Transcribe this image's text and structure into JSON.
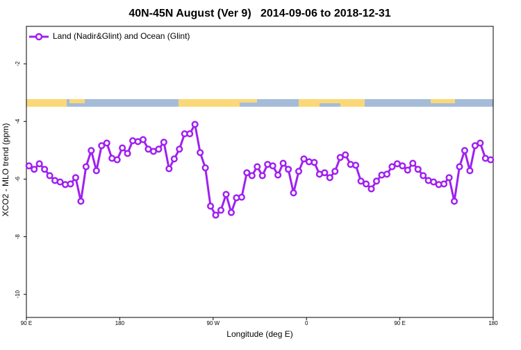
{
  "chart_data": {
    "type": "line",
    "title": "40N-45N August (Ver 9)   2014-09-06 to 2018-12-31",
    "xlabel": "Longitude (deg E)",
    "ylabel": "XCO2 - MLO trend (ppm)",
    "legend_position": "top-left",
    "x": [
      92.5,
      97.5,
      102.5,
      107.5,
      112.5,
      117.5,
      122.5,
      127.5,
      132.5,
      137.5,
      142.5,
      147.5,
      152.5,
      157.5,
      162.5,
      167.5,
      172.5,
      177.5,
      182.5,
      187.5,
      192.5,
      197.5,
      202.5,
      207.5,
      212.5,
      217.5,
      222.5,
      227.5,
      232.5,
      237.5,
      242.5,
      247.5,
      252.5,
      257.5,
      262.5,
      267.5,
      272.5,
      277.5,
      282.5,
      287.5,
      292.5,
      297.5,
      302.5,
      307.5,
      312.5,
      317.5,
      322.5,
      327.5,
      332.5,
      337.5,
      342.5,
      347.5,
      352.5,
      357.5,
      362.5,
      367.5,
      372.5,
      377.5,
      382.5,
      387.5,
      392.5,
      397.5,
      402.5,
      407.5,
      412.5,
      417.5,
      422.5,
      427.5,
      432.5,
      437.5,
      442.5,
      447.5,
      452.5,
      457.5,
      462.5,
      467.5,
      472.5,
      477.5,
      482.5,
      487.5,
      492.5,
      497.5,
      502.5,
      507.5,
      512.5,
      517.5,
      522.5,
      527.5,
      532.5,
      537.5
    ],
    "series": [
      {
        "name": "Land (Nadir&Glint) and Ocean (Glint)",
        "color": "#a020f0",
        "values": [
          -5.54,
          -5.66,
          -5.47,
          -5.66,
          -5.88,
          -6.05,
          -6.1,
          -6.19,
          -6.17,
          -5.95,
          -6.77,
          -5.57,
          -5.01,
          -5.71,
          -4.84,
          -4.75,
          -5.28,
          -5.33,
          -4.92,
          -5.11,
          -4.67,
          -4.7,
          -4.63,
          -4.96,
          -5.04,
          -4.96,
          -4.72,
          -5.64,
          -5.3,
          -4.96,
          -4.43,
          -4.43,
          -4.1,
          -5.08,
          -5.61,
          -6.94,
          -7.25,
          -7.08,
          -6.53,
          -7.16,
          -6.65,
          -6.63,
          -5.78,
          -5.88,
          -5.57,
          -5.88,
          -5.49,
          -5.54,
          -5.86,
          -5.45,
          -5.66,
          -6.48,
          -5.73,
          -5.3,
          -5.4,
          -5.42,
          -5.83,
          -5.78,
          -5.95,
          -5.73,
          -5.25,
          -5.16,
          -5.49,
          -5.52,
          -6.07,
          -6.17,
          -6.34,
          -6.07,
          -5.86,
          -5.83,
          -5.57,
          -5.47,
          -5.54,
          -5.69,
          -5.45,
          -5.66,
          -5.88,
          -6.05,
          -6.1,
          -6.19,
          -6.17,
          -5.95,
          -6.77,
          -5.57,
          -5.01,
          -5.71,
          -4.84,
          -4.75,
          -5.28,
          -5.33
        ]
      }
    ],
    "xlim": [
      90,
      540
    ],
    "xticks": [
      {
        "value": 90,
        "label": "90 E"
      },
      180,
      {
        "value": 270,
        "label": "90 W"
      },
      {
        "value": 360,
        "label": "0"
      },
      {
        "value": 450,
        "label": "90 E"
      },
      {
        "value": 540,
        "label": "180"
      }
    ],
    "ylim": [
      -10.8,
      -0.7
    ],
    "yticks": [
      -2,
      -4,
      -6,
      -8,
      -10
    ]
  }
}
